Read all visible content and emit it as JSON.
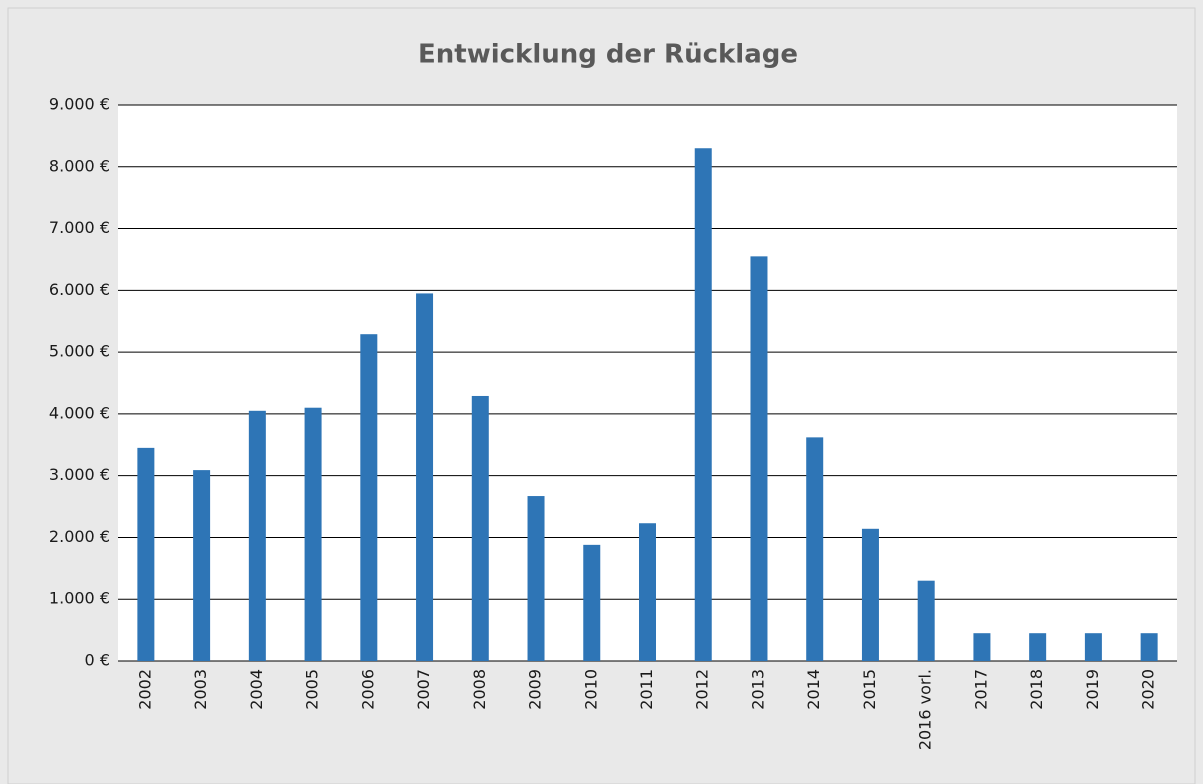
{
  "chart_data": {
    "type": "bar",
    "title": "Entwicklung der Rücklage",
    "categories": [
      "2002",
      "2003",
      "2004",
      "2005",
      "2006",
      "2007",
      "2008",
      "2009",
      "2010",
      "2011",
      "2012",
      "2013",
      "2014",
      "2015",
      "2016 vorl.",
      "2017",
      "2018",
      "2019",
      "2020"
    ],
    "values": [
      3450,
      3090,
      4050,
      4100,
      5290,
      5950,
      4290,
      2670,
      1880,
      2230,
      8300,
      6550,
      3620,
      2140,
      1300,
      450,
      450,
      450,
      450
    ],
    "color": "#2e75b6",
    "ylim": [
      0,
      9000
    ],
    "yticks": [
      {
        "value": 0,
        "label": "0 €"
      },
      {
        "value": 1000,
        "label": "1.000 €"
      },
      {
        "value": 2000,
        "label": "2.000 €"
      },
      {
        "value": 3000,
        "label": "3.000 €"
      },
      {
        "value": 4000,
        "label": "4.000 €"
      },
      {
        "value": 5000,
        "label": "5.000 €"
      },
      {
        "value": 6000,
        "label": "6.000 €"
      },
      {
        "value": 7000,
        "label": "7.000 €"
      },
      {
        "value": 8000,
        "label": "8.000 €"
      },
      {
        "value": 9000,
        "label": "9.000 €"
      }
    ],
    "grid": true
  }
}
